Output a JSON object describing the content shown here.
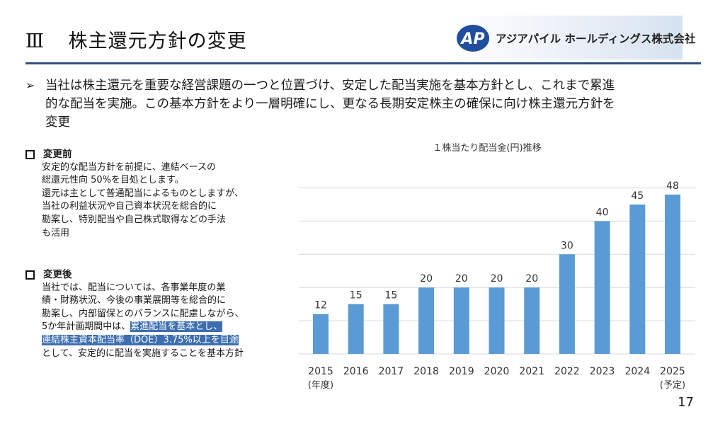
{
  "header": {
    "number": "Ⅲ",
    "title": "株主還元方針の変更",
    "company": "アジアパイル ホールディングス株式会社",
    "logo_mark": "AP"
  },
  "lead": {
    "bullet": "➢",
    "lines": [
      "当社は株主還元を重要な経営課題の一つと位置づけ、安定した配当実施を基本方針とし、これまで累進",
      "的な配当を実施。この基本方針をより一層明確にし、更なる長期安定株主の確保に向け株主還元方針を",
      "変更"
    ]
  },
  "before": {
    "heading": "変更前",
    "lines": [
      "安定的な配当方針を前提に、連結ベースの",
      "総還元性向 50%を目処とします。",
      "還元は主として普通配当によるものとしますが、",
      "当社の利益状況や自己資本状況を総合的に",
      "勘案し、特別配当や自己株式取得などの手法",
      "も活用"
    ]
  },
  "after": {
    "heading": "変更後",
    "lines": [
      "当社では、配当については、各事業年度の業",
      "績・財務状況、今後の事業展開等を総合的に",
      "勘案し、内部留保とのバランスに配慮しながら、"
    ],
    "line4_pre": "5か年計画期間中は、",
    "line4_hl": "累進配当を基本とし、",
    "line5_hl": "連結株主資本配当率（DOE）3.75%以上を目途",
    "line6": "として、安定的に配当を実施することを基本方針"
  },
  "page_number": "17",
  "colors": {
    "bar": "#5b9bd5",
    "rule": "#2f4f7f",
    "highlight": "#3d6fb0",
    "gridline": "#d9d9d9"
  },
  "chart_data": {
    "type": "bar",
    "title": "１株当たり配当金(円)推移",
    "categories": [
      "2015",
      "2016",
      "2017",
      "2018",
      "2019",
      "2020",
      "2021",
      "2022",
      "2023",
      "2024",
      "2025"
    ],
    "values": [
      12,
      15,
      15,
      20,
      20,
      20,
      20,
      30,
      40,
      45,
      48
    ],
    "first_category_note": "(年度)",
    "last_category_note": "(予定)",
    "ylim": [
      0,
      50
    ],
    "grid": true,
    "y_axis_labels_shown": false,
    "legend": "none"
  }
}
